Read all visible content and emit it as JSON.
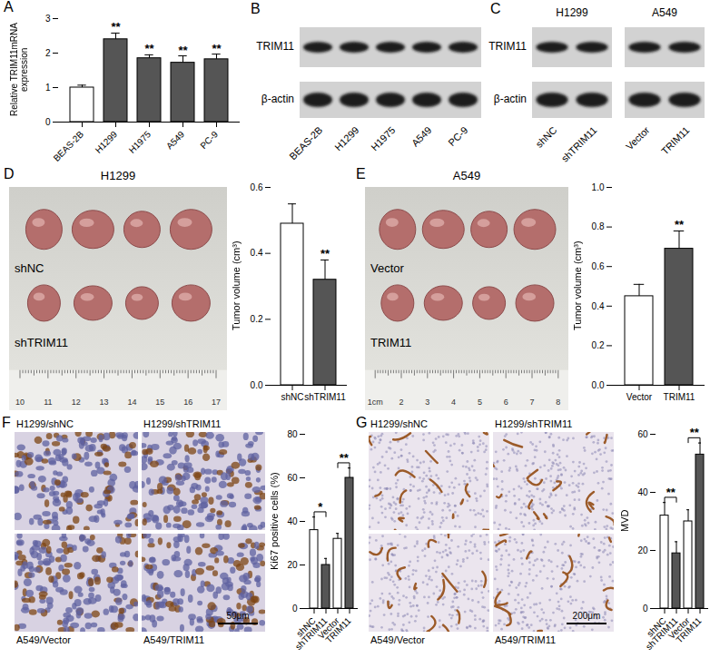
{
  "chart_data": [
    {
      "panel": "A",
      "type": "bar",
      "ylabel": "Relative TRIM11mRNA expression",
      "categories": [
        "BEAS-2B",
        "H1299",
        "H1975",
        "A549",
        "PC-9"
      ],
      "values": [
        1.0,
        2.4,
        1.85,
        1.72,
        1.82
      ],
      "errors": [
        0.07,
        0.18,
        0.1,
        0.2,
        0.15
      ],
      "colors": [
        "#ffffff",
        "#555555",
        "#555555",
        "#555555",
        "#555555"
      ],
      "ylim": [
        0,
        3
      ],
      "yticks": [
        0,
        1,
        2,
        3
      ],
      "annotations": [
        null,
        "**",
        "**",
        "**",
        "**"
      ]
    },
    {
      "type": "bar",
      "ylabel": "Tumor volume (cm³)",
      "categories": [
        "shNC",
        "shTRIM11"
      ],
      "values": [
        0.49,
        0.32
      ],
      "errors": [
        0.06,
        0.06
      ],
      "colors": [
        "#ffffff",
        "#555555"
      ],
      "ylim": [
        0,
        0.6
      ],
      "yticks": [
        {
          "value": 0,
          "label": "0.0"
        },
        0.2,
        0.4,
        0.6
      ],
      "annotations": [
        null,
        "**"
      ]
    },
    {
      "type": "bar",
      "ylabel": "Tumor volume (cm³)",
      "categories": [
        "Vector",
        "TRIM11"
      ],
      "values": [
        0.45,
        0.69
      ],
      "errors": [
        0.06,
        0.09
      ],
      "colors": [
        "#ffffff",
        "#555555"
      ],
      "ylim": [
        0,
        1
      ],
      "yticks": [
        {
          "value": 0,
          "label": "0.0"
        },
        0.2,
        0.4,
        0.6,
        0.8,
        {
          "value": 1,
          "label": "1.0"
        }
      ],
      "annotations": [
        null,
        "**"
      ]
    },
    {
      "type": "bar",
      "ylabel": "Ki67 positive cells (%)",
      "categories": [
        "shNC",
        "shTRIM11",
        "Vector",
        "TRIM11"
      ],
      "values": [
        36,
        20,
        32,
        60
      ],
      "errors": [
        6,
        3,
        2.5,
        4.5
      ],
      "colors": [
        "#ffffff",
        "#555555",
        "#ffffff",
        "#555555"
      ],
      "ylim": [
        0,
        80
      ],
      "yticks": [
        0,
        20,
        40,
        60,
        80
      ],
      "comparisons": [
        {
          "from": 0,
          "to": 1,
          "label": "*"
        },
        {
          "from": 2,
          "to": 3,
          "label": "**"
        }
      ]
    },
    {
      "type": "bar",
      "ylabel": "MVD",
      "categories": [
        "shNC",
        "shTRIM11",
        "Vector",
        "TRIM11"
      ],
      "values": [
        32,
        19,
        30,
        53
      ],
      "errors": [
        4.5,
        4,
        4,
        4
      ],
      "colors": [
        "#ffffff",
        "#555555",
        "#ffffff",
        "#555555"
      ],
      "ylim": [
        0,
        60
      ],
      "yticks": [
        0,
        20,
        40,
        60
      ],
      "comparisons": [
        {
          "from": 0,
          "to": 1,
          "label": "**"
        },
        {
          "from": 2,
          "to": 3,
          "label": "**"
        }
      ]
    }
  ],
  "blots": [
    {
      "panel": "B",
      "rows": [
        "TRIM11",
        "β-actin"
      ],
      "lanes": [
        "BEAS-2B",
        "H1299",
        "H1975",
        "A549",
        "PC-9"
      ]
    },
    {
      "panel": "C",
      "rows": [
        "TRIM11",
        "β-actin"
      ],
      "groups": [
        {
          "name": "H1299",
          "lanes": [
            "shNC",
            "shTRIM11"
          ]
        },
        {
          "name": "A549",
          "lanes": [
            "Vector",
            "TRIM11"
          ]
        }
      ]
    }
  ],
  "photos": [
    {
      "panel": "D",
      "title": "H1299",
      "rows": [
        "shNC",
        "shTRIM11"
      ],
      "ruler": [
        "10",
        "11",
        "12",
        "13",
        "14",
        "15",
        "16",
        "17"
      ]
    },
    {
      "panel": "E",
      "title": "A549",
      "rows": [
        "Vector",
        "TRIM11"
      ],
      "ruler": [
        "1cm",
        "2",
        "3",
        "4",
        "5",
        "6",
        "7",
        "8"
      ]
    }
  ],
  "micrographs": [
    {
      "panel": "F",
      "labels_top": [
        "H1299/shNC",
        "H1299/shTRIM11"
      ],
      "labels_bottom": [
        "A549/Vector",
        "A549/TRIM11"
      ],
      "scale_bar": "50μm"
    },
    {
      "panel": "G",
      "labels_top": [
        "H1299/shNC",
        "H1299/shTRIM11"
      ],
      "labels_bottom": [
        "A549/Vector",
        "A549/TRIM11"
      ],
      "scale_bar": "200μm"
    }
  ]
}
